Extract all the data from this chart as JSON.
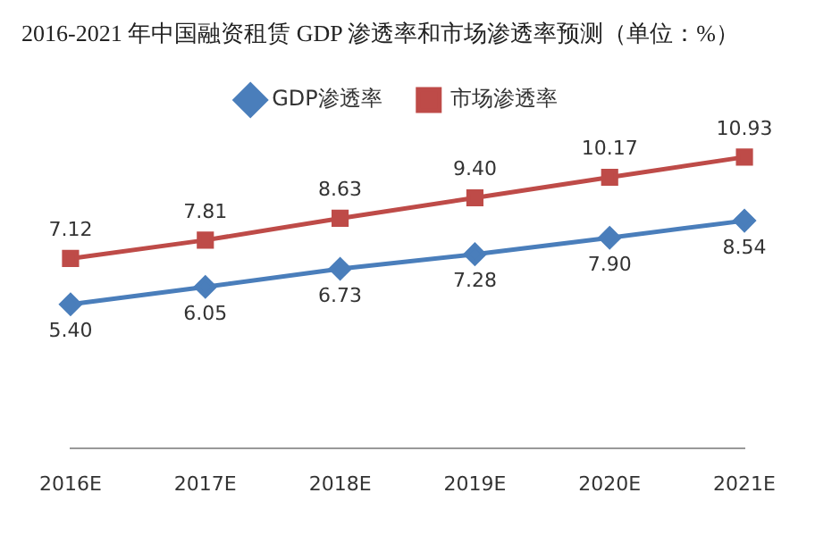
{
  "chart_data": {
    "type": "line",
    "title": "2016-2021 年中国融资租赁 GDP 渗透率和市场渗透率预测（单位：%）",
    "categories": [
      "2016E",
      "2017E",
      "2018E",
      "2019E",
      "2020E",
      "2021E"
    ],
    "series": [
      {
        "name": "GDP渗透率",
        "color": "#4a7ebb",
        "marker": "diamond",
        "values": [
          5.4,
          6.05,
          6.73,
          7.28,
          7.9,
          8.54
        ],
        "value_labels": [
          "5.40",
          "6.05",
          "6.73",
          "7.28",
          "7.90",
          "8.54"
        ]
      },
      {
        "name": "市场渗透率",
        "color": "#be4b48",
        "marker": "square",
        "values": [
          7.12,
          7.81,
          8.63,
          9.4,
          10.17,
          10.93
        ],
        "value_labels": [
          "7.12",
          "7.81",
          "8.63",
          "9.40",
          "10.17",
          "10.93"
        ]
      }
    ],
    "legend": "top",
    "grid": false
  }
}
